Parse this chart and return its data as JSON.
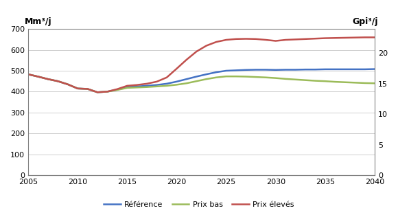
{
  "years": [
    2005,
    2006,
    2007,
    2008,
    2009,
    2010,
    2011,
    2012,
    2013,
    2014,
    2015,
    2016,
    2017,
    2018,
    2019,
    2020,
    2021,
    2022,
    2023,
    2024,
    2025,
    2026,
    2027,
    2028,
    2029,
    2030,
    2031,
    2032,
    2033,
    2034,
    2035,
    2036,
    2037,
    2038,
    2039,
    2040
  ],
  "reference": [
    483,
    472,
    460,
    450,
    435,
    415,
    413,
    397,
    400,
    410,
    422,
    425,
    428,
    432,
    438,
    448,
    460,
    472,
    483,
    493,
    500,
    502,
    504,
    505,
    505,
    504,
    505,
    505,
    506,
    506,
    507,
    507,
    507,
    507,
    507,
    508
  ],
  "prix_bas": [
    483,
    472,
    460,
    450,
    435,
    415,
    413,
    397,
    400,
    408,
    418,
    420,
    422,
    425,
    428,
    433,
    440,
    450,
    460,
    468,
    473,
    473,
    472,
    470,
    468,
    465,
    461,
    458,
    455,
    452,
    450,
    447,
    445,
    443,
    441,
    440
  ],
  "prix_eleves": [
    483,
    472,
    460,
    450,
    435,
    415,
    413,
    397,
    400,
    412,
    428,
    432,
    438,
    448,
    468,
    510,
    553,
    592,
    620,
    638,
    648,
    652,
    653,
    652,
    648,
    643,
    648,
    650,
    652,
    654,
    656,
    657,
    658,
    659,
    660,
    660
  ],
  "reference_color": "#4472C4",
  "prix_bas_color": "#9BBB59",
  "prix_eleves_color": "#C0504D",
  "ylim_left": [
    0,
    700
  ],
  "yticks_left": [
    0,
    100,
    200,
    300,
    400,
    500,
    600,
    700
  ],
  "yticks_right_labels": [
    "0",
    "5",
    "10",
    "15",
    "20"
  ],
  "yticks_right_vals": [
    0,
    146.25,
    292.5,
    438.75,
    585
  ],
  "xlim": [
    2005,
    2040
  ],
  "xticks": [
    2005,
    2010,
    2015,
    2020,
    2025,
    2030,
    2035,
    2040
  ],
  "ylabel_left": "Mm³/j",
  "ylabel_right": "Gpi³/j",
  "legend_labels": [
    "Référence",
    "Prix bas",
    "Prix élevés"
  ],
  "line_width": 1.8,
  "grid_color": "#c8c8c8",
  "spine_color": "#808080",
  "tick_labelsize": 8,
  "label_fontsize": 9
}
